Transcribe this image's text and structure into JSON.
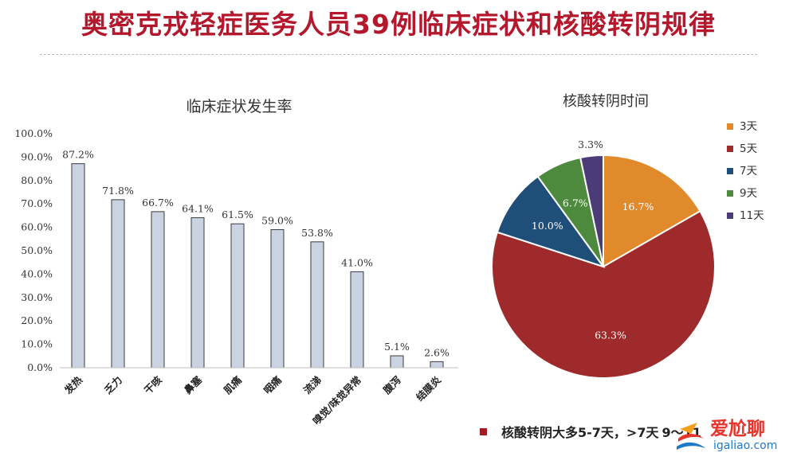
{
  "header": {
    "title": "奥密克戎轻症医务人员39例临床症状和核酸转阴规律"
  },
  "chart_data": [
    {
      "type": "bar",
      "title": "临床症状发生率",
      "categories": [
        "发热",
        "乏力",
        "干咳",
        "鼻塞",
        "肌痛",
        "咽痛",
        "流涕",
        "嗅觉/味觉异常",
        "腹泻",
        "结膜炎"
      ],
      "values": [
        87.2,
        71.8,
        66.7,
        64.1,
        61.5,
        59.0,
        53.8,
        41.0,
        5.1,
        2.6
      ],
      "value_labels": [
        "87.2%",
        "71.8%",
        "66.7%",
        "64.1%",
        "61.5%",
        "59.0%",
        "53.8%",
        "41.0%",
        "5.1%",
        "2.6%"
      ],
      "ylim": [
        0,
        100
      ],
      "yticks": [
        "0.0%",
        "10.0%",
        "20.0%",
        "30.0%",
        "40.0%",
        "50.0%",
        "60.0%",
        "70.0%",
        "80.0%",
        "90.0%",
        "100.0%"
      ],
      "bar_color": "#c9d3e2",
      "grid": false,
      "legend": "none"
    },
    {
      "type": "pie",
      "title": "核酸转阴时间",
      "slices": [
        {
          "label": "3天",
          "value": 16.7,
          "value_label": "16.7%",
          "color": "#e08a2c"
        },
        {
          "label": "5天",
          "value": 63.3,
          "value_label": "63.3%",
          "color": "#9e2a2b"
        },
        {
          "label": "7天",
          "value": 10.0,
          "value_label": "10.0%",
          "color": "#1f4e79"
        },
        {
          "label": "9天",
          "value": 6.7,
          "value_label": "6.7%",
          "color": "#4e8a3e"
        },
        {
          "label": "11天",
          "value": 3.3,
          "value_label": "3.3%",
          "color": "#4b3c78"
        }
      ],
      "legend": "right"
    }
  ],
  "conclusion": {
    "text": "核酸转阴大多5-7天，>7天",
    "tail": "9～11",
    "bullet_color": "#a01b22"
  },
  "watermark": {
    "name": "爱尬聊",
    "url": "igaliao.com"
  }
}
